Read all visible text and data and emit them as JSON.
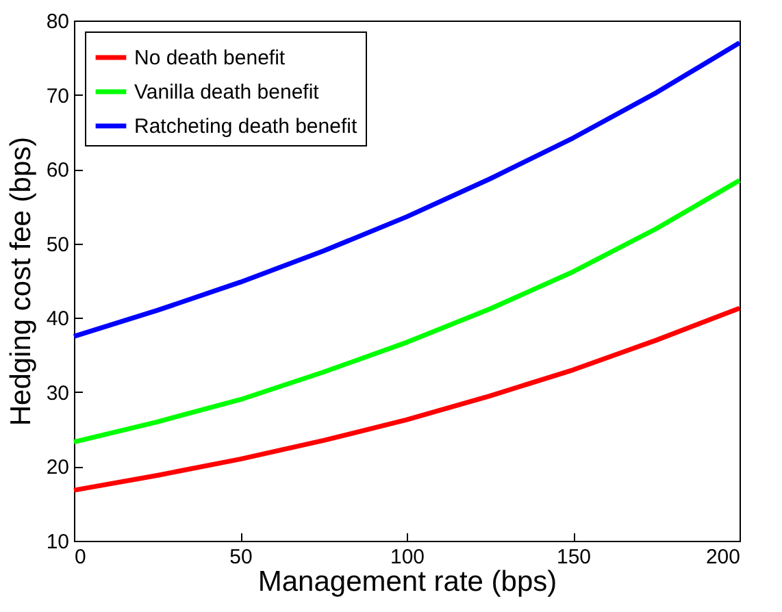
{
  "chart_data": {
    "type": "line",
    "xlabel": "Management rate (bps)",
    "ylabel": "Hedging cost fee (bps)",
    "x": [
      0,
      25,
      50,
      75,
      100,
      125,
      150,
      175,
      200
    ],
    "series": [
      {
        "name": "No death benefit",
        "color": "#ff0000",
        "values": [
          16.8,
          18.8,
          21,
          23.5,
          26.3,
          29.5,
          33,
          37,
          41.3
        ]
      },
      {
        "name": "Vanilla death benefit",
        "color": "#00ff00",
        "values": [
          23.3,
          26,
          29,
          32.7,
          36.7,
          41.2,
          46.2,
          52,
          58.5
        ]
      },
      {
        "name": "Ratcheting death benefit",
        "color": "#0000ff",
        "values": [
          37.5,
          41,
          44.8,
          49,
          53.6,
          58.7,
          64.2,
          70.3,
          77
        ]
      }
    ],
    "xlim": [
      0,
      200
    ],
    "xticks": [
      0,
      50,
      100,
      150,
      200
    ],
    "ylim": [
      10,
      80
    ],
    "yticks": [
      10,
      20,
      30,
      40,
      50,
      60,
      70,
      80
    ],
    "grid": false,
    "legend": "top left",
    "marker": "none",
    "line_style": "solid"
  }
}
